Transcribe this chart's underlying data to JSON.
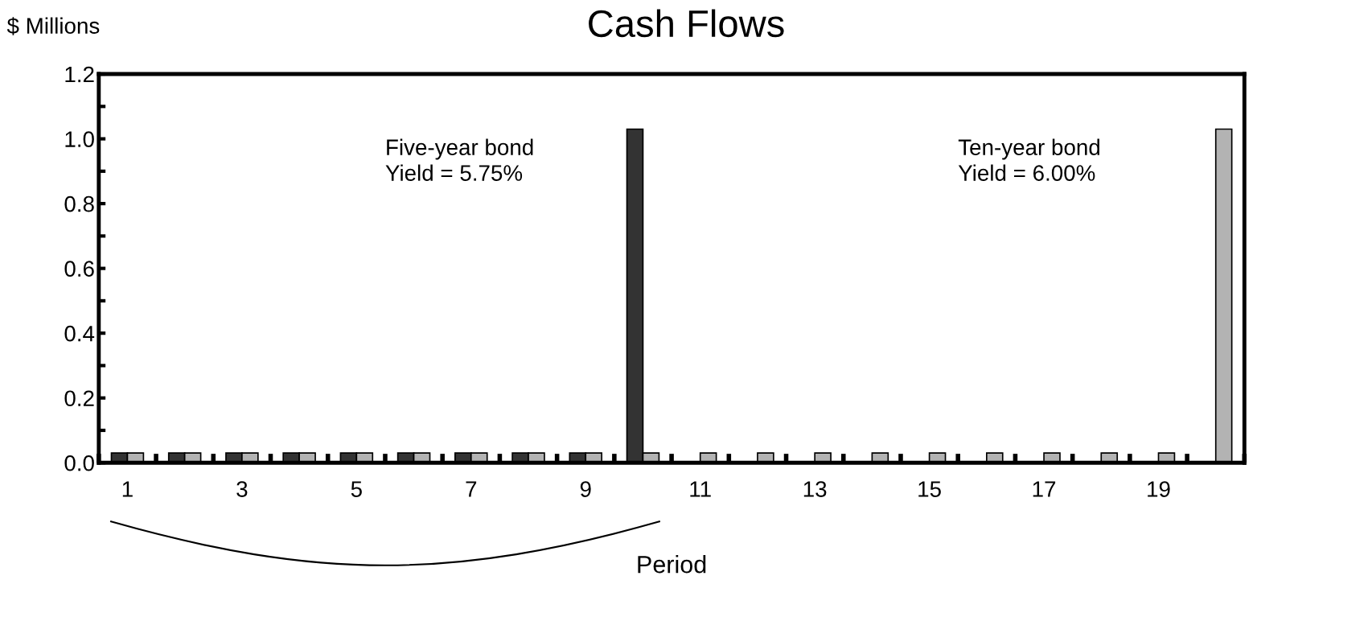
{
  "chart_data": {
    "type": "bar",
    "title": "Cash Flows",
    "ylabel": "$ Millions",
    "xlabel": "Period",
    "categories": [
      "1",
      null,
      "3",
      null,
      "5",
      null,
      "7",
      null,
      "9",
      null,
      "11",
      null,
      "13",
      null,
      "15",
      null,
      "17",
      null,
      "19",
      null
    ],
    "series": [
      {
        "color": "#333333",
        "values": [
          0.03,
          0.03,
          0.03,
          0.03,
          0.03,
          0.03,
          0.03,
          0.03,
          0.03,
          1.03,
          null,
          null,
          null,
          null,
          null,
          null,
          null,
          null,
          null,
          null
        ]
      },
      {
        "color": "#b3b3b3",
        "values": [
          0.03,
          0.03,
          0.03,
          0.03,
          0.03,
          0.03,
          0.03,
          0.03,
          0.03,
          0.03,
          0.03,
          0.03,
          0.03,
          0.03,
          0.03,
          0.03,
          0.03,
          0.03,
          0.03,
          1.03
        ]
      }
    ],
    "annotations": [
      "Five-year bond\nYield = 5.75%",
      "Ten-year bond\nYield = 6.00%"
    ],
    "ylim": [
      0,
      1.2
    ],
    "yticks": [
      {
        "value": 0,
        "label": "0.0"
      },
      {
        "value": 0.1,
        "label": null
      },
      {
        "value": 0.2,
        "label": "0.2"
      },
      {
        "value": 0.3,
        "label": null
      },
      {
        "value": 0.4,
        "label": "0.4"
      },
      {
        "value": 0.5,
        "label": null
      },
      {
        "value": 0.6,
        "label": "0.6"
      },
      {
        "value": 0.7,
        "label": null
      },
      {
        "value": 0.8,
        "label": "0.8"
      },
      {
        "value": 0.9,
        "label": null
      },
      {
        "value": 1.0,
        "label": "1.0"
      },
      {
        "value": 1.1,
        "label": null
      },
      {
        "value": 1.2,
        "label": "1.2"
      }
    ],
    "grid": false,
    "legend": false
  }
}
